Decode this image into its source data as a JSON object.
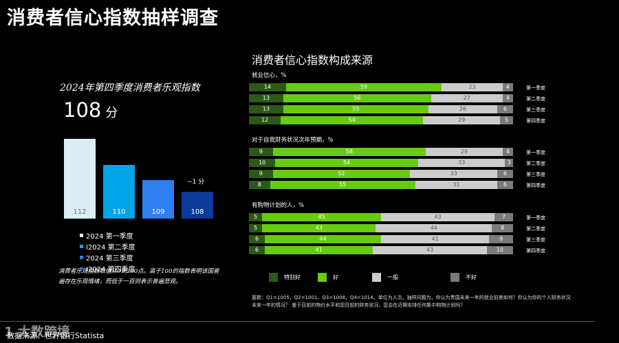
{
  "page_title": "消费者信心指数抽样调查",
  "left": {
    "title": "2024年第四季度消费者乐观指数",
    "score": "108",
    "score_unit": "分",
    "delta": "−1 分",
    "legend": [
      "2024 第一季度",
      "I2024 第二季度",
      "2024 第三季度",
      "I2024 第四季度"
    ],
    "note": "消费者乐观指数取值从0到200点。高于100的指数表明该国普遍存在乐观情绪，而低于一百则表示普遍悲观。"
  },
  "right": {
    "title": "消费者信心指数构成来源",
    "quarter_labels": [
      "第一季度",
      "第二季度",
      "第三季度",
      "第四季度"
    ],
    "legend": [
      "特别好",
      "好",
      "一般",
      "不好"
    ],
    "footnote": "基数：Q1=1005，Q2=1001，Q3=1008，Q4=1014。单位为人次。抽样问题为，你认为贵国未来一年的就业前景如何？你认为你的个人财务状况未来一年的情况？ 鉴于目前的物价水平和您目前的财务状况，您会在近期安排任何集中购物计划吗？"
  },
  "source": "数据来源：世界银行Statista",
  "watermark": "1 大数跨境",
  "colors": {
    "q1": "#dbeef5",
    "q2": "#00a6e8",
    "q3": "#2f7ff0",
    "q4": "#0b3a9a",
    "very_good": "#2b5a16",
    "good": "#66cc11",
    "fair": "#cccccc",
    "bad": "#7a7a7a"
  },
  "chart_data": [
    {
      "type": "bar",
      "categories": [
        "2024 第一季度",
        "I2024 第二季度",
        "2024 第三季度",
        "I2024 第四季度"
      ],
      "values": [
        112,
        110,
        109,
        108
      ],
      "title": "2024年第四季度消费者乐观指数"
    },
    {
      "type": "bar",
      "stacked": true,
      "orientation": "horizontal",
      "title": "消费者信心指数构成来源",
      "series_names": [
        "特别好",
        "好",
        "一般",
        "不好"
      ],
      "categories": [
        "第一季度",
        "第二季度",
        "第三季度",
        "第四季度"
      ],
      "groups": [
        {
          "title": "就业信心，%",
          "rows": [
            [
              14,
              59,
              23,
              4
            ],
            [
              13,
              56,
              27,
              4
            ],
            [
              13,
              55,
              26,
              6
            ],
            [
              12,
              54,
              29,
              5
            ]
          ]
        },
        {
          "title": "对于自我财务状况次年预期，%",
          "rows": [
            [
              9,
              58,
              29,
              4
            ],
            [
              10,
              54,
              33,
              3
            ],
            [
              9,
              52,
              33,
              6
            ],
            [
              8,
              55,
              31,
              6
            ]
          ]
        },
        {
          "title": "有购物计划的人，%",
          "rows": [
            [
              5,
              45,
              43,
              7
            ],
            [
              5,
              43,
              44,
              8
            ],
            [
              6,
              44,
              41,
              9
            ],
            [
              6,
              41,
              43,
              10
            ]
          ]
        }
      ]
    }
  ]
}
